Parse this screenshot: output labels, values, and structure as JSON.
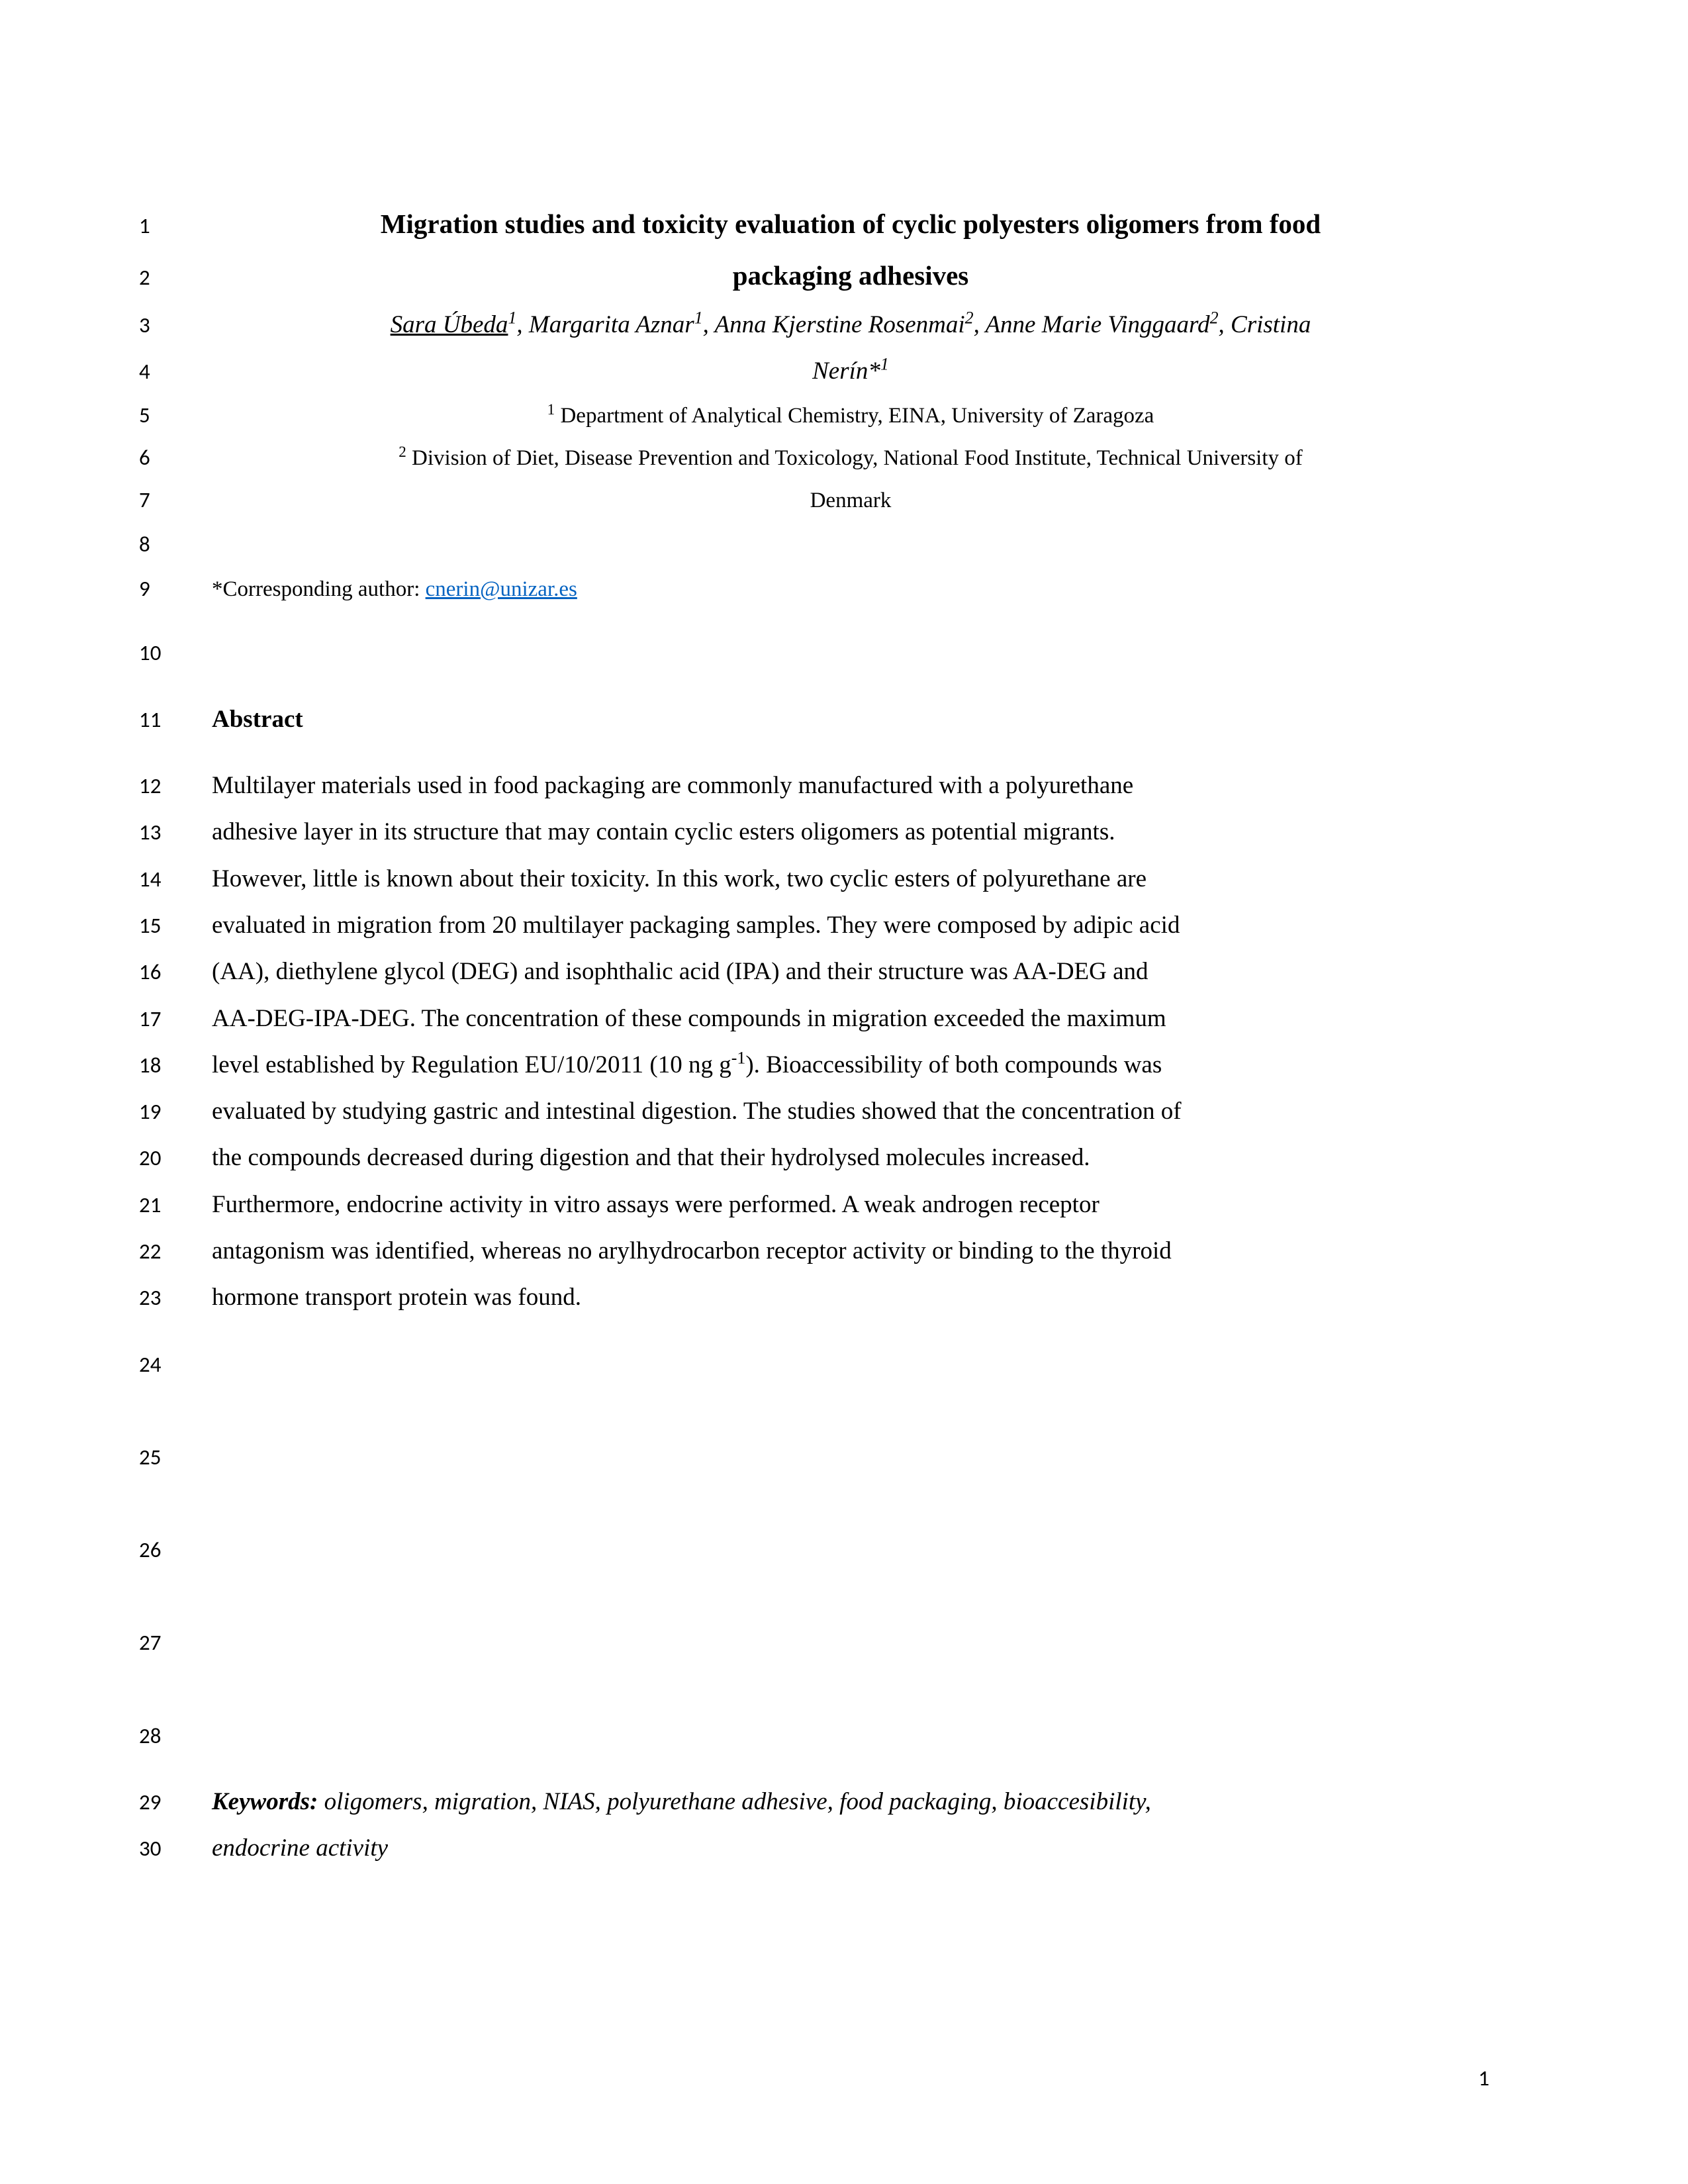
{
  "page_number": "1",
  "lines": {
    "1": {
      "num": "1",
      "type": "title",
      "text": "Migration studies and toxicity evaluation of cyclic polyesters oligomers from food"
    },
    "2": {
      "num": "2",
      "type": "title",
      "text": "packaging adhesives"
    },
    "3": {
      "num": "3",
      "type": "authors"
    },
    "4": {
      "num": "4",
      "type": "authors2"
    },
    "5": {
      "num": "5",
      "type": "affil1"
    },
    "6": {
      "num": "6",
      "type": "affil2"
    },
    "7": {
      "num": "7",
      "type": "affil3",
      "text": "Denmark"
    },
    "8": {
      "num": "8",
      "type": "blank"
    },
    "9": {
      "num": "9",
      "type": "corr"
    },
    "10": {
      "num": "10",
      "type": "blank"
    },
    "11": {
      "num": "11",
      "type": "abshead",
      "text": "Abstract"
    },
    "12": {
      "num": "12",
      "type": "body",
      "text": "Multilayer materials used in food packaging are commonly manufactured with a polyurethane"
    },
    "13": {
      "num": "13",
      "type": "body",
      "text": "adhesive layer in its structure that may contain cyclic esters oligomers as potential migrants."
    },
    "14": {
      "num": "14",
      "type": "body",
      "text": "However, little is known about their toxicity. In this work, two cyclic esters of polyurethane are"
    },
    "15": {
      "num": "15",
      "type": "body",
      "text": "evaluated in migration from 20 multilayer packaging samples. They were composed by adipic acid"
    },
    "16": {
      "num": "16",
      "type": "body",
      "text": "(AA), diethylene glycol (DEG) and isophthalic acid (IPA) and their structure was AA-DEG and"
    },
    "17": {
      "num": "17",
      "type": "body",
      "text": "AA-DEG-IPA-DEG. The concentration of these compounds in migration exceeded the maximum"
    },
    "18": {
      "num": "18",
      "type": "body_sup"
    },
    "19": {
      "num": "19",
      "type": "body",
      "text": "evaluated by studying gastric and intestinal digestion. The studies showed that the concentration of"
    },
    "20": {
      "num": "20",
      "type": "body",
      "text": "the compounds decreased during digestion and that their hydrolysed molecules increased."
    },
    "21": {
      "num": "21",
      "type": "body",
      "text": "Furthermore, endocrine activity in vitro assays were performed. A weak androgen receptor"
    },
    "22": {
      "num": "22",
      "type": "body",
      "text": "antagonism was identified, whereas no arylhydrocarbon receptor activity or binding to the thyroid"
    },
    "23": {
      "num": "23",
      "type": "body",
      "text": "hormone transport protein was found."
    },
    "24": {
      "num": "24",
      "type": "blank"
    },
    "25": {
      "num": "25",
      "type": "blank"
    },
    "26": {
      "num": "26",
      "type": "blank"
    },
    "27": {
      "num": "27",
      "type": "blank"
    },
    "28": {
      "num": "28",
      "type": "blank"
    },
    "29": {
      "num": "29",
      "type": "keywords"
    },
    "30": {
      "num": "30",
      "type": "keywords2",
      "text": "endocrine activity"
    }
  },
  "authors": {
    "a1_name": "Sara Úbeda",
    "a1_sup": "1",
    "a2_name": ", Margarita Aznar",
    "a2_sup": "1",
    "a3_name": ", Anna Kjerstine Rosenmai",
    "a3_sup": "2",
    "a4_name": ", Anne Marie Vinggaard",
    "a4_sup": "2",
    "a5_name": ", Cristina",
    "line2": "Nerín*",
    "line2_sup": "1"
  },
  "affiliations": {
    "sup1": "1",
    "text1": " Department of Analytical Chemistry, EINA, University of Zaragoza",
    "sup2": "2",
    "text2": " Division of Diet, Disease Prevention and Toxicology, National Food Institute, Technical University of"
  },
  "corresponding": {
    "prefix": "*Corresponding author: ",
    "email": "cnerin@unizar.es"
  },
  "body18": {
    "pre": "level established by Regulation EU/10/2011 (10 ng g",
    "sup": "-1",
    "post": "). Bioaccessibility of both compounds was"
  },
  "keywords": {
    "label": "Keywords:",
    "text": " oligomers, migration, NIAS, polyurethane adhesive, food packaging, bioaccesibility,"
  }
}
